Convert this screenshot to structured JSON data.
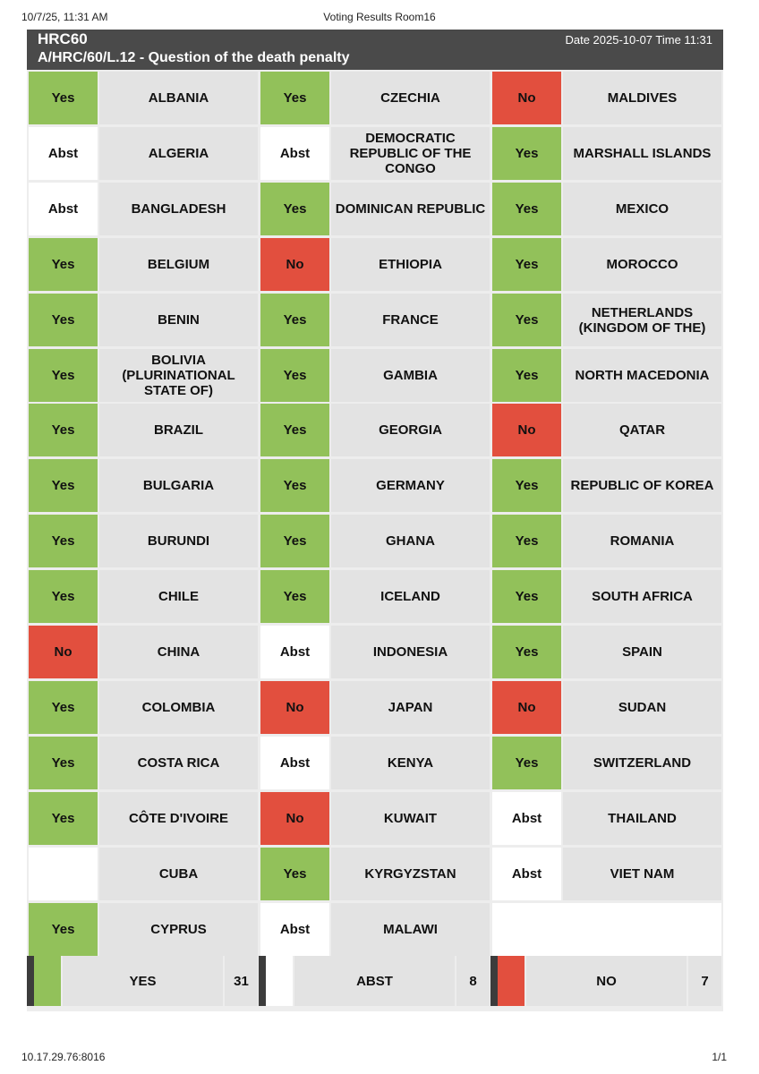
{
  "print_header": {
    "timestamp": "10/7/25, 11:31 AM",
    "title": "Voting Results Room16"
  },
  "banner": {
    "session": "HRC60",
    "resolution": "A/HRC/60/L.12 - Question of the death penalty",
    "datetime": "Date 2025-10-07 Time 11:31"
  },
  "columns": [
    [
      {
        "vote": "Yes",
        "status": "yes",
        "country": "ALBANIA"
      },
      {
        "vote": "Abst",
        "status": "abst",
        "country": "ALGERIA"
      },
      {
        "vote": "Abst",
        "status": "abst",
        "country": "BANGLADESH"
      },
      {
        "vote": "Yes",
        "status": "yes",
        "country": "BELGIUM"
      },
      {
        "vote": "Yes",
        "status": "yes",
        "country": "BENIN"
      },
      {
        "vote": "Yes",
        "status": "yes",
        "country": "BOLIVIA (PLURINATIONAL STATE OF)"
      },
      {
        "vote": "Yes",
        "status": "yes",
        "country": "BRAZIL"
      },
      {
        "vote": "Yes",
        "status": "yes",
        "country": "BULGARIA"
      },
      {
        "vote": "Yes",
        "status": "yes",
        "country": "BURUNDI"
      },
      {
        "vote": "Yes",
        "status": "yes",
        "country": "CHILE"
      },
      {
        "vote": "No",
        "status": "no",
        "country": "CHINA"
      },
      {
        "vote": "Yes",
        "status": "yes",
        "country": "COLOMBIA"
      },
      {
        "vote": "Yes",
        "status": "yes",
        "country": "COSTA RICA"
      },
      {
        "vote": "Yes",
        "status": "yes",
        "country": "CÔTE D'IVOIRE"
      },
      {
        "vote": "",
        "status": "none",
        "country": "CUBA"
      },
      {
        "vote": "Yes",
        "status": "yes",
        "country": "CYPRUS"
      }
    ],
    [
      {
        "vote": "Yes",
        "status": "yes",
        "country": "CZECHIA"
      },
      {
        "vote": "Abst",
        "status": "abst",
        "country": "DEMOCRATIC REPUBLIC OF THE CONGO"
      },
      {
        "vote": "Yes",
        "status": "yes",
        "country": "DOMINICAN REPUBLIC"
      },
      {
        "vote": "No",
        "status": "no",
        "country": "ETHIOPIA"
      },
      {
        "vote": "Yes",
        "status": "yes",
        "country": "FRANCE"
      },
      {
        "vote": "Yes",
        "status": "yes",
        "country": "GAMBIA"
      },
      {
        "vote": "Yes",
        "status": "yes",
        "country": "GEORGIA"
      },
      {
        "vote": "Yes",
        "status": "yes",
        "country": "GERMANY"
      },
      {
        "vote": "Yes",
        "status": "yes",
        "country": "GHANA"
      },
      {
        "vote": "Yes",
        "status": "yes",
        "country": "ICELAND"
      },
      {
        "vote": "Abst",
        "status": "abst",
        "country": "INDONESIA"
      },
      {
        "vote": "No",
        "status": "no",
        "country": "JAPAN"
      },
      {
        "vote": "Abst",
        "status": "abst",
        "country": "KENYA"
      },
      {
        "vote": "No",
        "status": "no",
        "country": "KUWAIT"
      },
      {
        "vote": "Yes",
        "status": "yes",
        "country": "KYRGYZSTAN"
      },
      {
        "vote": "Abst",
        "status": "abst",
        "country": "MALAWI"
      }
    ],
    [
      {
        "vote": "No",
        "status": "no",
        "country": "MALDIVES"
      },
      {
        "vote": "Yes",
        "status": "yes",
        "country": "MARSHALL ISLANDS"
      },
      {
        "vote": "Yes",
        "status": "yes",
        "country": "MEXICO"
      },
      {
        "vote": "Yes",
        "status": "yes",
        "country": "MOROCCO"
      },
      {
        "vote": "Yes",
        "status": "yes",
        "country": "NETHERLANDS (KINGDOM OF THE)"
      },
      {
        "vote": "Yes",
        "status": "yes",
        "country": "NORTH MACEDONIA"
      },
      {
        "vote": "No",
        "status": "no",
        "country": "QATAR"
      },
      {
        "vote": "Yes",
        "status": "yes",
        "country": "REPUBLIC OF KOREA"
      },
      {
        "vote": "Yes",
        "status": "yes",
        "country": "ROMANIA"
      },
      {
        "vote": "Yes",
        "status": "yes",
        "country": "SOUTH AFRICA"
      },
      {
        "vote": "Yes",
        "status": "yes",
        "country": "SPAIN"
      },
      {
        "vote": "No",
        "status": "no",
        "country": "SUDAN"
      },
      {
        "vote": "Yes",
        "status": "yes",
        "country": "SWITZERLAND"
      },
      {
        "vote": "Abst",
        "status": "abst",
        "country": "THAILAND"
      },
      {
        "vote": "Abst",
        "status": "abst",
        "country": "VIET NAM"
      }
    ]
  ],
  "summary": [
    {
      "status": "yes",
      "label": "YES",
      "count": "31"
    },
    {
      "status": "abst",
      "label": "ABST",
      "count": "8"
    },
    {
      "status": "no",
      "label": "NO",
      "count": "7"
    }
  ],
  "colors": {
    "yes": "#92c15a",
    "no": "#e24f3e",
    "abst": "#ffffff",
    "banner": "#4a4a4a"
  },
  "footer": {
    "address": "10.17.29.76:8016",
    "page": "1/1"
  }
}
